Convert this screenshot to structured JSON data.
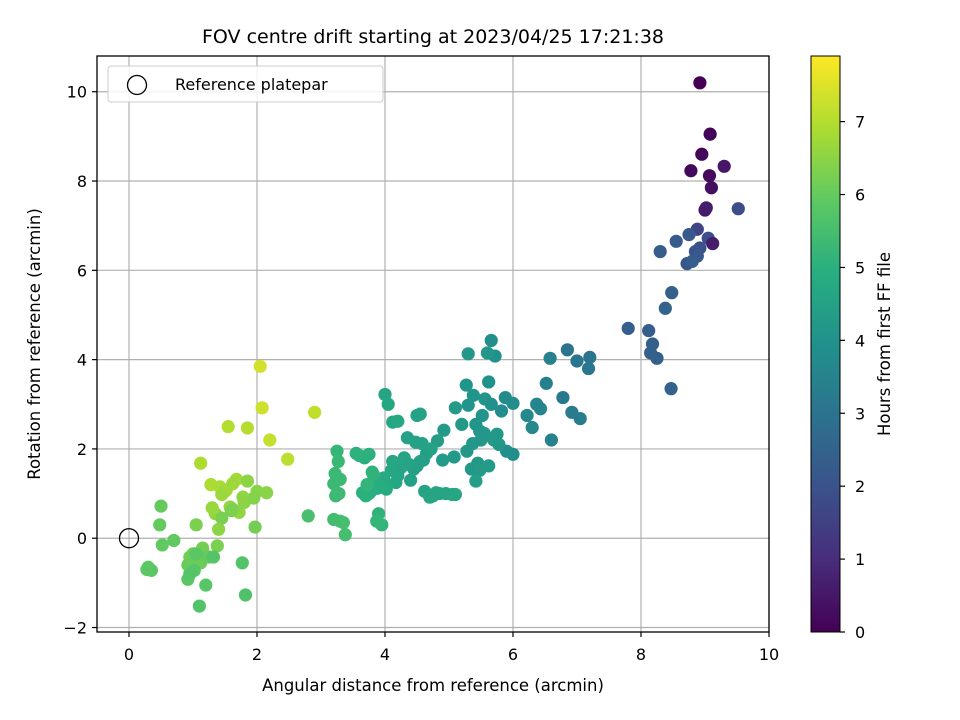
{
  "chart_data": {
    "type": "scatter",
    "title": "FOV centre drift starting at 2023/04/25 17:21:38",
    "xlabel": "Angular distance from reference (arcmin)",
    "ylabel": "Rotation from reference (arcmin)",
    "xlim": [
      -0.5,
      10
    ],
    "ylim": [
      -2.1,
      10.8
    ],
    "x_ticks": [
      0,
      2,
      4,
      6,
      8,
      10
    ],
    "y_ticks": [
      -2,
      0,
      2,
      4,
      6,
      8,
      10
    ],
    "x_tick_labels": [
      "0",
      "2",
      "4",
      "6",
      "8",
      "10"
    ],
    "y_tick_labels": [
      "−2",
      "0",
      "2",
      "4",
      "6",
      "8",
      "10"
    ],
    "grid": true,
    "legend": {
      "placement": "top-left",
      "entries": [
        "Reference platepar"
      ]
    },
    "reference_point": {
      "x": 0,
      "y": 0,
      "marker": "open-circle"
    },
    "colormap": "viridis",
    "colorbar": {
      "label": "Hours from first FF file",
      "range": [
        0,
        7.9
      ],
      "ticks": [
        0,
        1,
        2,
        3,
        4,
        5,
        6,
        7
      ],
      "tick_labels": [
        "0",
        "1",
        "2",
        "3",
        "4",
        "5",
        "6",
        "7"
      ]
    },
    "series": [
      {
        "x": [
          8.92,
          9.08,
          8.95,
          8.78,
          9.07,
          9.1,
          9.3,
          9.0,
          9.02,
          9.52,
          8.88,
          9.05,
          8.92,
          8.75,
          9.12,
          8.85,
          8.72,
          8.55,
          8.3,
          8.48,
          8.38,
          7.8,
          8.12,
          8.18,
          8.25,
          8.15,
          8.47,
          8.88,
          8.8,
          6.85,
          7.0,
          7.2,
          7.18,
          6.78,
          7.05,
          6.92,
          6.58,
          6.52,
          6.6,
          6.37,
          6.43,
          6.3,
          6.22,
          6.0,
          5.88,
          5.82,
          6.0,
          5.9,
          5.72,
          5.66,
          5.62,
          5.56,
          5.66,
          5.52,
          5.42,
          5.48,
          5.3,
          5.38,
          5.27,
          5.55,
          5.5,
          5.37,
          5.28,
          5.08,
          5.1,
          5.2,
          4.92,
          4.82,
          4.9,
          5.35,
          5.45,
          5.3,
          5.6,
          5.75,
          5.78,
          5.7,
          5.62,
          5.48,
          5.42
        ],
        "y": [
          10.2,
          9.05,
          8.6,
          8.23,
          8.12,
          7.85,
          8.33,
          7.35,
          7.4,
          7.38,
          6.92,
          6.72,
          6.5,
          6.8,
          6.6,
          6.42,
          6.15,
          6.65,
          6.42,
          5.5,
          5.15,
          4.7,
          4.65,
          4.35,
          4.03,
          4.15,
          3.35,
          6.32,
          6.2,
          4.22,
          3.97,
          4.05,
          3.8,
          3.15,
          2.68,
          2.82,
          4.03,
          3.47,
          2.2,
          3.0,
          2.9,
          2.48,
          2.75,
          3.02,
          3.15,
          2.85,
          1.88,
          1.95,
          4.08,
          4.43,
          3.5,
          3.12,
          3.0,
          2.75,
          2.55,
          2.4,
          2.98,
          3.2,
          3.43,
          2.35,
          2.2,
          2.12,
          1.95,
          1.82,
          2.92,
          2.55,
          2.42,
          2.18,
          1.75,
          1.55,
          1.68,
          4.13,
          4.15,
          2.33,
          2.1,
          2.2,
          1.62,
          1.52,
          1.28
        ],
        "hours": [
          0,
          0.1,
          0.12,
          0.18,
          0.2,
          0.32,
          0.5,
          0.55,
          0.6,
          1.85,
          1.6,
          1.9,
          1.95,
          2.2,
          0.6,
          2.05,
          2.1,
          2.25,
          2.3,
          2.4,
          2.5,
          2.35,
          2.35,
          2.4,
          2.45,
          2.4,
          2.5,
          2.2,
          2.3,
          3.0,
          3.1,
          3.05,
          3.1,
          3.2,
          3.3,
          3.25,
          3.45,
          3.4,
          3.4,
          3.6,
          3.55,
          3.65,
          3.65,
          3.8,
          3.75,
          3.8,
          3.85,
          3.9,
          3.95,
          3.9,
          4.0,
          4.05,
          4.0,
          4.05,
          4.1,
          4.1,
          4.05,
          4.1,
          4.1,
          4.15,
          4.2,
          4.15,
          4.2,
          4.25,
          4.3,
          4.25,
          4.3,
          4.35,
          4.3,
          4.2,
          4.2,
          4.15,
          4.15,
          4.2,
          4.2,
          4.25,
          4.3,
          4.3,
          4.4
        ]
      },
      {
        "x": [
          4.65,
          4.6,
          4.5,
          4.55,
          4.45,
          4.4,
          4.62,
          4.75,
          4.85,
          4.7,
          4.8,
          4.95,
          5.05,
          5.1,
          4.72,
          4.58,
          4.48,
          4.35,
          4.3,
          4.38,
          4.25,
          4.18,
          4.12,
          4.2,
          4.1,
          4.17,
          4.0,
          3.98,
          3.95,
          4.02,
          3.88,
          3.92,
          3.85,
          3.78,
          3.75,
          3.7,
          3.65,
          3.68,
          3.6,
          3.55,
          3.75,
          3.8,
          3.82,
          3.72,
          3.25,
          3.27,
          3.22,
          3.2,
          3.28,
          3.23,
          3.3,
          3.35,
          3.38,
          3.2,
          2.8,
          3.25,
          3.3,
          4.0,
          4.05,
          4.12,
          4.2,
          4.5,
          4.55,
          3.9,
          3.95,
          3.87
        ],
        "y": [
          1.9,
          1.75,
          1.62,
          1.72,
          1.55,
          1.3,
          1.05,
          0.95,
          1.0,
          0.92,
          1.02,
          1.0,
          0.98,
          0.98,
          2.0,
          2.12,
          2.15,
          2.25,
          1.8,
          1.65,
          1.58,
          1.6,
          1.72,
          1.4,
          1.52,
          1.25,
          1.22,
          1.35,
          1.28,
          1.1,
          1.12,
          1.18,
          1.15,
          1.05,
          1.0,
          0.95,
          1.02,
          1.8,
          1.85,
          1.9,
          1.88,
          1.48,
          1.42,
          1.2,
          1.95,
          1.72,
          1.45,
          1.22,
          1.0,
          0.95,
          0.38,
          0.35,
          0.08,
          0.42,
          0.5,
          1.0,
          1.32,
          3.22,
          3.0,
          2.6,
          2.62,
          2.75,
          2.78,
          0.55,
          0.3,
          0.38
        ],
        "hours": [
          4.4,
          4.45,
          4.4,
          4.45,
          4.45,
          4.5,
          4.55,
          4.55,
          4.55,
          4.6,
          4.6,
          4.6,
          4.6,
          4.65,
          4.5,
          4.5,
          4.5,
          4.5,
          4.6,
          4.55,
          4.6,
          4.6,
          4.65,
          4.65,
          4.7,
          4.7,
          4.75,
          4.8,
          4.8,
          4.85,
          4.85,
          4.9,
          4.9,
          4.95,
          4.95,
          5.0,
          5.0,
          4.95,
          5.0,
          5.05,
          5.0,
          5.1,
          5.1,
          5.15,
          5.2,
          5.25,
          5.3,
          5.3,
          5.35,
          5.35,
          5.45,
          5.5,
          5.5,
          5.45,
          5.55,
          5.35,
          5.3,
          4.6,
          4.65,
          4.7,
          4.75,
          4.55,
          4.5,
          5.1,
          5.15,
          5.2
        ]
      },
      {
        "x": [
          2.05,
          2.08,
          2.2,
          2.48,
          2.9,
          1.55,
          1.85,
          1.12,
          1.28,
          1.42,
          1.52,
          1.68,
          1.62,
          1.5,
          1.45,
          1.35,
          1.3,
          1.58,
          1.72,
          1.85,
          1.78,
          1.8,
          2.0,
          2.15,
          1.95,
          1.62,
          1.38,
          1.05,
          1.45,
          1.6,
          1.97,
          1.15,
          1.0,
          0.95,
          1.05,
          1.12,
          0.92,
          1.2,
          1.25,
          0.5,
          0.48,
          0.7,
          0.52,
          0.3,
          0.28,
          0.35,
          0.92,
          1.02,
          1.2,
          1.05,
          0.95,
          1.32,
          1.1,
          1.77,
          1.82,
          1.4
        ],
        "y": [
          3.85,
          2.92,
          2.2,
          1.77,
          2.82,
          2.5,
          2.47,
          1.68,
          1.2,
          1.15,
          1.08,
          1.32,
          1.22,
          1.05,
          0.98,
          0.55,
          0.68,
          0.7,
          0.58,
          1.28,
          0.92,
          0.8,
          1.05,
          1.02,
          0.9,
          0.65,
          -0.17,
          0.3,
          0.45,
          0.62,
          0.25,
          -0.22,
          -0.35,
          -0.42,
          -0.45,
          -0.55,
          -0.6,
          -0.4,
          -0.42,
          0.72,
          0.3,
          -0.05,
          -0.15,
          -0.65,
          -0.7,
          -0.72,
          -0.92,
          -0.72,
          -1.05,
          -0.35,
          -0.8,
          -0.42,
          -1.52,
          -0.55,
          -1.27,
          0.2
        ],
        "hours": [
          7.4,
          7.3,
          7.2,
          7.1,
          7.15,
          7.0,
          7.0,
          6.9,
          6.9,
          6.85,
          6.8,
          6.8,
          6.7,
          6.75,
          6.7,
          6.6,
          6.65,
          6.6,
          6.55,
          6.5,
          6.55,
          6.5,
          6.45,
          6.45,
          6.4,
          6.4,
          6.3,
          6.3,
          6.25,
          6.3,
          6.2,
          6.2,
          6.15,
          6.15,
          6.1,
          6.1,
          6.05,
          6.05,
          6.0,
          6.0,
          6.0,
          5.95,
          5.95,
          5.9,
          5.9,
          5.85,
          5.85,
          5.8,
          5.8,
          5.85,
          5.75,
          5.75,
          5.7,
          5.7,
          5.65,
          6.5
        ]
      }
    ]
  }
}
